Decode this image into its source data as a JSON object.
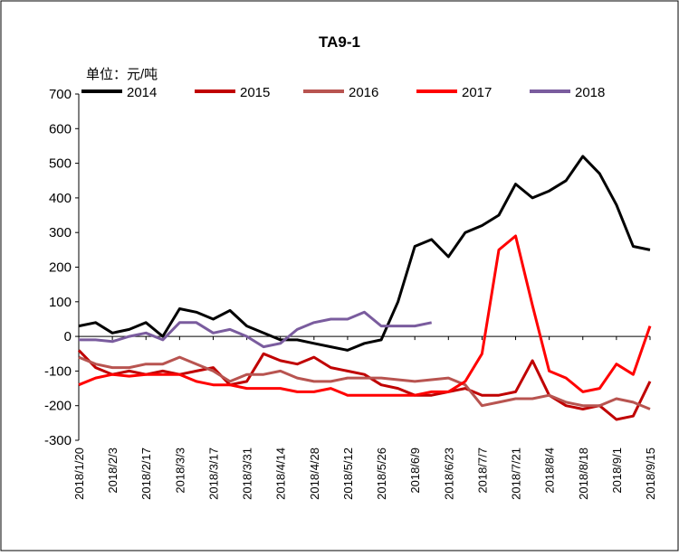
{
  "chart_data": {
    "type": "line",
    "title": "TA9-1",
    "unit_label": "单位：元/吨",
    "x": [
      "2018/1/20",
      "2018/1/27",
      "2018/2/3",
      "2018/2/10",
      "2018/2/17",
      "2018/2/24",
      "2018/3/3",
      "2018/3/10",
      "2018/3/17",
      "2018/3/24",
      "2018/3/31",
      "2018/4/7",
      "2018/4/14",
      "2018/4/21",
      "2018/4/28",
      "2018/5/5",
      "2018/5/12",
      "2018/5/19",
      "2018/5/26",
      "2018/6/2",
      "2018/6/9",
      "2018/6/16",
      "2018/6/23",
      "2018/6/30",
      "2018/7/7",
      "2018/7/14",
      "2018/7/21",
      "2018/7/28",
      "2018/8/4",
      "2018/8/11",
      "2018/8/18",
      "2018/8/25",
      "2018/9/1",
      "2018/9/8",
      "2018/9/15"
    ],
    "series": [
      {
        "name": "2014",
        "color": "#000000",
        "values": [
          30,
          40,
          10,
          20,
          40,
          0,
          80,
          70,
          50,
          75,
          30,
          10,
          -10,
          -10,
          -20,
          -30,
          -40,
          -20,
          -10,
          100,
          260,
          280,
          230,
          300,
          320,
          350,
          440,
          400,
          420,
          450,
          520,
          470,
          380,
          260,
          250
        ]
      },
      {
        "name": "2015",
        "color": "#c00000",
        "values": [
          -40,
          -90,
          -110,
          -100,
          -110,
          -100,
          -110,
          -100,
          -90,
          -140,
          -130,
          -50,
          -70,
          -80,
          -60,
          -90,
          -100,
          -110,
          -140,
          -150,
          -170,
          -170,
          -160,
          -150,
          -170,
          -170,
          -160,
          -70,
          -170,
          -200,
          -210,
          -200,
          -240,
          -230,
          -130
        ]
      },
      {
        "name": "2016",
        "color": "#b85450",
        "values": [
          -60,
          -80,
          -90,
          -90,
          -80,
          -80,
          -60,
          -80,
          -100,
          -130,
          -110,
          -110,
          -100,
          -120,
          -130,
          -130,
          -120,
          -120,
          -120,
          -125,
          -130,
          -125,
          -120,
          -140,
          -200,
          -190,
          -180,
          -180,
          -170,
          -190,
          -200,
          -200,
          -180,
          -190,
          -210
        ]
      },
      {
        "name": "2017",
        "color": "#ff0000",
        "values": [
          -140,
          -120,
          -110,
          -115,
          -110,
          -110,
          -110,
          -130,
          -140,
          -140,
          -150,
          -150,
          -150,
          -160,
          -160,
          -150,
          -170,
          -170,
          -170,
          -170,
          -170,
          -160,
          -160,
          -130,
          -50,
          250,
          290,
          90,
          -100,
          -120,
          -160,
          -150,
          -80,
          -110,
          30
        ]
      },
      {
        "name": "2018",
        "color": "#7a5c9e",
        "values": [
          -10,
          -10,
          -15,
          0,
          10,
          -10,
          40,
          40,
          10,
          20,
          0,
          -30,
          -20,
          20,
          40,
          50,
          50,
          70,
          30,
          30,
          30,
          40,
          null,
          null,
          null,
          null,
          null,
          null,
          null,
          null,
          null,
          null,
          null,
          null,
          null
        ]
      }
    ],
    "ylim": [
      -300,
      700
    ],
    "yticks": [
      -300,
      -200,
      -100,
      0,
      100,
      200,
      300,
      400,
      500,
      600,
      700
    ],
    "xticks": [
      "2018/1/20",
      "2018/2/3",
      "2018/2/17",
      "2018/3/3",
      "2018/3/17",
      "2018/3/31",
      "2018/4/14",
      "2018/4/28",
      "2018/5/12",
      "2018/5/26",
      "2018/6/9",
      "2018/6/23",
      "2018/7/7",
      "2018/7/21",
      "2018/8/4",
      "2018/8/18",
      "2018/9/1",
      "2018/9/15"
    ]
  }
}
